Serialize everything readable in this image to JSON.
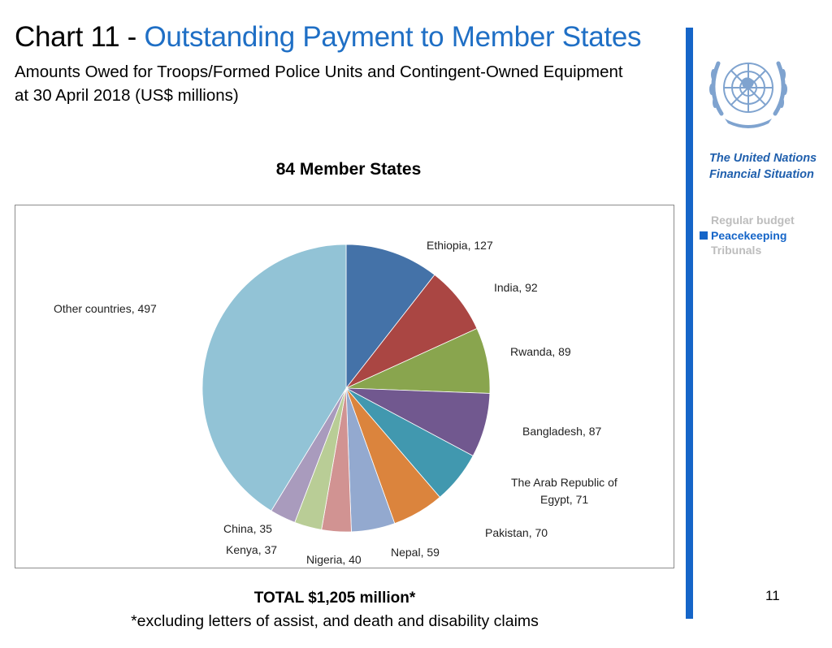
{
  "header": {
    "title_prefix": "Chart 11 - ",
    "title_main": "Outstanding Payment to Member States",
    "subtitle_line1": "Amounts Owed for Troops/Formed Police Units and Contingent-Owned Equipment",
    "subtitle_line2": "at 30 April 2018 (US$ millions)"
  },
  "sidebar": {
    "org_line1": "The United Nations",
    "org_line2": "Financial Situation",
    "nav": [
      {
        "label": "Regular budget",
        "active": false
      },
      {
        "label": "Peacekeeping",
        "active": true
      },
      {
        "label": "Tribunals",
        "active": false
      }
    ],
    "logo_icon": "un-emblem-icon",
    "colors": {
      "accent": "#1565c8",
      "nav_inactive": "#bdbdbd",
      "title": "#1f6fc5"
    }
  },
  "chart_data": {
    "type": "pie",
    "title": "84 Member States",
    "start_angle_deg": 0,
    "direction": "clockwise",
    "slices": [
      {
        "label": "Ethiopia",
        "value": 127,
        "color": "#4472a8"
      },
      {
        "label": "India",
        "value": 92,
        "color": "#aa4643"
      },
      {
        "label": "Rwanda",
        "value": 89,
        "color": "#89a54e"
      },
      {
        "label": "Bangladesh",
        "value": 87,
        "color": "#71588f"
      },
      {
        "label": "The Arab Republic of Egypt",
        "value": 71,
        "color": "#4198af"
      },
      {
        "label": "Pakistan",
        "value": 70,
        "color": "#db843d"
      },
      {
        "label": "Nepal",
        "value": 59,
        "color": "#93a9cf"
      },
      {
        "label": "Nigeria",
        "value": 40,
        "color": "#d19392"
      },
      {
        "label": "Kenya",
        "value": 37,
        "color": "#b9cd96"
      },
      {
        "label": "China",
        "value": 35,
        "color": "#a99bbd"
      },
      {
        "label": "Other countries",
        "value": 497,
        "color": "#92c3d6"
      }
    ],
    "labels": [
      {
        "lines": [
          "Ethiopia,   127"
        ]
      },
      {
        "lines": [
          "India,   92"
        ]
      },
      {
        "lines": [
          "Rwanda,   89"
        ]
      },
      {
        "lines": [
          "Bangladesh,   87"
        ]
      },
      {
        "lines": [
          "The Arab Republic of",
          "Egypt,   71"
        ]
      },
      {
        "lines": [
          "Pakistan,   70"
        ]
      },
      {
        "lines": [
          "Nepal,   59"
        ]
      },
      {
        "lines": [
          "Nigeria,   40"
        ]
      },
      {
        "lines": [
          "Kenya,   37"
        ]
      },
      {
        "lines": [
          "China,   35"
        ]
      },
      {
        "lines": [
          "Other countries,   497"
        ]
      }
    ]
  },
  "footer": {
    "total": "TOTAL  $1,205 million*",
    "footnote": "*excluding letters of assist, and death and disability claims",
    "page_number": "11"
  }
}
